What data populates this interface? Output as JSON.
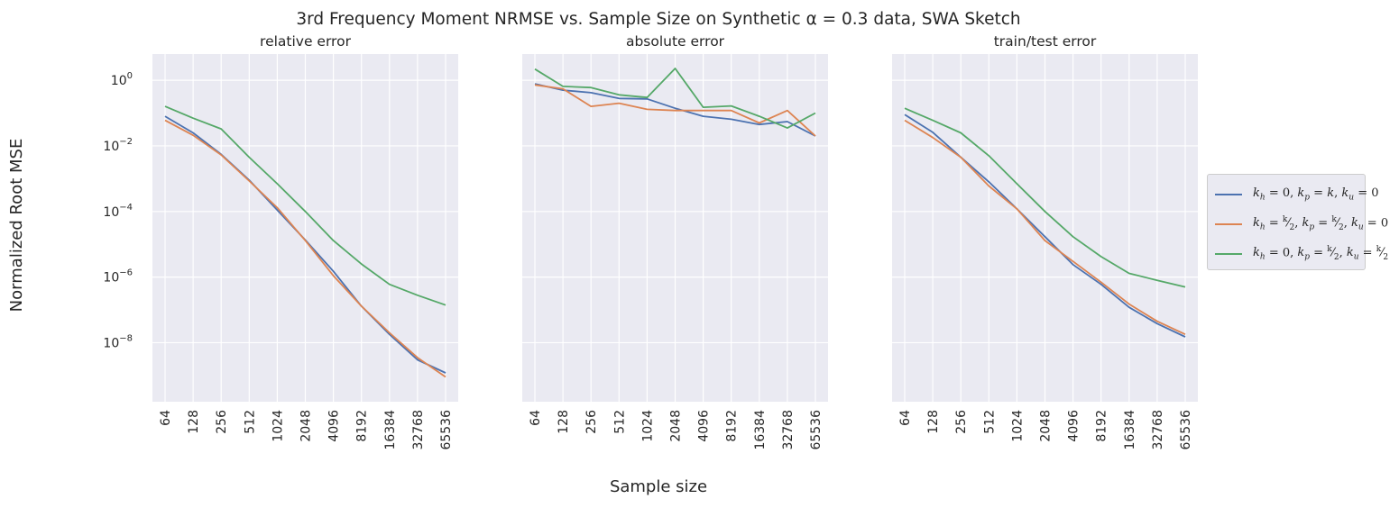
{
  "chart_data": {
    "type": "line",
    "title": "3rd Frequency Moment NRMSE vs. Sample Size on Synthetic α = 0.3 data, SWA Sketch",
    "xlabel": "Sample size",
    "ylabel": "Normalized Root MSE",
    "yscale": "log",
    "ylim_exponent": [
      -9.8,
      0.8
    ],
    "ytick_labels": [
      "10^0",
      "10^-2",
      "10^-4",
      "10^-6",
      "10^-8"
    ],
    "ytick_values": [
      0,
      -2,
      -4,
      -6,
      -8
    ],
    "categories": [
      "64",
      "128",
      "256",
      "512",
      "1024",
      "2048",
      "4096",
      "8192",
      "16384",
      "32768",
      "65536"
    ],
    "grid": true,
    "sharey": true,
    "legend_placement": "right",
    "legend": [
      {
        "key": "s1",
        "color": "#4c72b0",
        "label_html": "<i>k<sub>h</sub></i> = 0, <i>k<sub>p</sub></i> = <i>k</i>, <i>k<sub>u</sub></i> = 0"
      },
      {
        "key": "s2",
        "color": "#dd8452",
        "label_html": "<i>k<sub>h</sub></i> = <sup>k</sup>&frasl;<sub>2</sub>, <i>k<sub>p</sub></i> = <sup>k</sup>&frasl;<sub>2</sub>, <i>k<sub>u</sub></i> = 0"
      },
      {
        "key": "s3",
        "color": "#55a868",
        "label_html": "<i>k<sub>h</sub></i> = 0, <i>k<sub>p</sub></i> = <sup>k</sup>&frasl;<sub>2</sub>, <i>k<sub>u</sub></i> = <sup>k</sup>&frasl;<sub>2</sub>"
      }
    ],
    "panels": [
      {
        "title": "relative error",
        "series": [
          {
            "key": "s1",
            "values": [
              0.08,
              0.025,
              0.0055,
              0.0009,
              0.00011,
              1.35e-05,
              1.5e-06,
              1.3e-07,
              1.8e-08,
              3e-09,
              1.2e-09
            ]
          },
          {
            "key": "s2",
            "values": [
              0.06,
              0.021,
              0.0053,
              0.00085,
              0.00013,
              1.3e-05,
              1.1e-06,
              1.3e-07,
              2e-08,
              3.5e-09,
              9e-10
            ]
          },
          {
            "key": "s3",
            "values": [
              0.16,
              0.07,
              0.033,
              0.0045,
              0.0007,
              0.0001,
              1.3e-05,
              2.5e-06,
              6e-07,
              2.8e-07,
              1.4e-07
            ]
          }
        ]
      },
      {
        "title": "absolute error",
        "series": [
          {
            "key": "s1",
            "values": [
              0.78,
              0.5,
              0.42,
              0.28,
              0.27,
              0.14,
              0.08,
              0.065,
              0.045,
              0.055,
              0.02
            ]
          },
          {
            "key": "s2",
            "values": [
              0.72,
              0.55,
              0.16,
              0.2,
              0.13,
              0.12,
              0.12,
              0.12,
              0.05,
              0.12,
              0.02
            ]
          },
          {
            "key": "s3",
            "values": [
              2.2,
              0.65,
              0.6,
              0.36,
              0.3,
              2.3,
              0.15,
              0.165,
              0.08,
              0.035,
              0.1
            ]
          }
        ]
      },
      {
        "title": "train/test error",
        "series": [
          {
            "key": "s1",
            "values": [
              0.09,
              0.026,
              0.0045,
              0.0008,
              0.00012,
              1.7e-05,
              2.4e-06,
              6e-07,
              1.2e-07,
              3.8e-08,
              1.5e-08
            ]
          },
          {
            "key": "s2",
            "values": [
              0.06,
              0.018,
              0.0045,
              0.0006,
              0.00012,
              1.3e-05,
              3e-06,
              7e-07,
              1.5e-07,
              4.5e-08,
              1.8e-08
            ]
          },
          {
            "key": "s3",
            "values": [
              0.14,
              0.06,
              0.025,
              0.005,
              0.0007,
              0.0001,
              1.7e-05,
              4.2e-06,
              1.3e-06,
              8e-07,
              5e-07
            ]
          }
        ]
      }
    ]
  }
}
